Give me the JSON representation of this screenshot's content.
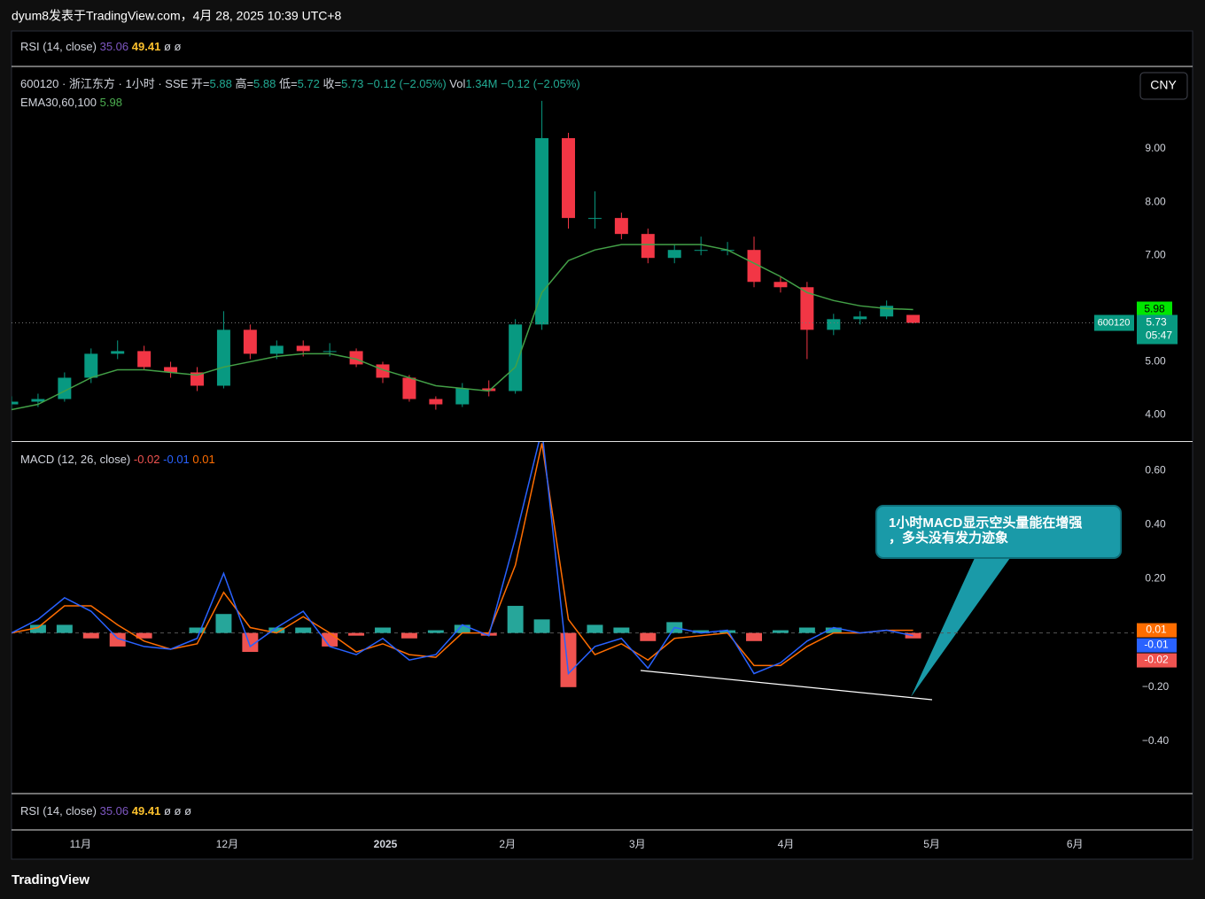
{
  "header": {
    "publisher": "dyum8发表于TradingView.com，4月 28, 2025 10:39 UTC+8",
    "currency_button": "CNY",
    "brand": "TradingView"
  },
  "rsi_pane": {
    "title": "RSI (14, close)",
    "value1": 35.06,
    "value2": 49.41,
    "extra": [
      "ø",
      "ø",
      "ø"
    ]
  },
  "annotation": [
    "1小时MACD显示空头量能在增强",
    "，多头没有发力迹象"
  ],
  "chart_data": [
    {
      "type": "candlestick",
      "symbol": "600120 · 浙江东方 · 1小时 · SSE",
      "ticker": "600120",
      "countdown": "05:47",
      "open_label": "开=",
      "high_label": "高=",
      "low_label": "低=",
      "close_label": "收=",
      "change": "−0.12 (−2.05%)",
      "vol_label": "Vol",
      "volume": "1.34M",
      "x": [
        0,
        3,
        6,
        9,
        12,
        15,
        18,
        21,
        24,
        27,
        30,
        33,
        36,
        39,
        42,
        45,
        48,
        51,
        54,
        57,
        60,
        63,
        66,
        69,
        72,
        75,
        78,
        81,
        84,
        87,
        90,
        93,
        96,
        99,
        102
      ],
      "open": [
        4.2,
        4.25,
        4.3,
        4.7,
        5.15,
        5.2,
        4.9,
        4.8,
        4.55,
        5.6,
        5.15,
        5.3,
        5.2,
        5.2,
        4.95,
        4.7,
        4.3,
        4.2,
        4.5,
        4.45,
        5.7,
        9.2,
        7.7,
        7.7,
        7.4,
        6.95,
        7.1,
        7.1,
        7.1,
        6.5,
        6.4,
        5.6,
        5.8,
        5.85,
        5.88
      ],
      "high": [
        4.35,
        4.4,
        4.8,
        5.25,
        5.4,
        5.3,
        5.0,
        4.9,
        5.95,
        5.7,
        5.4,
        5.4,
        5.35,
        5.25,
        5.0,
        4.75,
        4.35,
        4.6,
        4.65,
        5.8,
        9.9,
        9.3,
        8.2,
        7.8,
        7.5,
        7.2,
        7.35,
        7.25,
        7.35,
        6.6,
        6.5,
        5.9,
        5.95,
        6.15,
        5.88
      ],
      "low": [
        4.1,
        4.15,
        4.25,
        4.6,
        5.05,
        4.85,
        4.7,
        4.45,
        4.5,
        5.05,
        5.05,
        5.1,
        5.1,
        4.9,
        4.6,
        4.25,
        4.1,
        4.15,
        4.35,
        4.4,
        5.6,
        7.5,
        7.5,
        7.3,
        6.85,
        6.85,
        7.0,
        7.0,
        6.4,
        6.3,
        5.05,
        5.5,
        5.7,
        5.8,
        5.72
      ],
      "close": [
        4.25,
        4.3,
        4.7,
        5.15,
        5.2,
        4.9,
        4.8,
        4.55,
        5.6,
        5.15,
        5.3,
        5.2,
        5.2,
        4.95,
        4.7,
        4.3,
        4.2,
        4.5,
        4.45,
        5.7,
        9.2,
        7.7,
        7.7,
        7.4,
        6.95,
        7.1,
        7.1,
        7.1,
        6.5,
        6.4,
        5.6,
        5.8,
        5.85,
        6.05,
        5.73
      ],
      "up_color": "#089981",
      "down_color": "#f23645",
      "series": [
        {
          "name": "EMA30,60,100",
          "color": "#43a047",
          "values": [
            4.1,
            4.2,
            4.45,
            4.7,
            4.85,
            4.85,
            4.8,
            4.75,
            4.9,
            5.0,
            5.1,
            5.15,
            5.15,
            5.05,
            4.85,
            4.7,
            4.55,
            4.5,
            4.45,
            4.9,
            6.3,
            6.9,
            7.1,
            7.2,
            7.2,
            7.2,
            7.2,
            7.1,
            6.85,
            6.6,
            6.3,
            6.15,
            6.05,
            6.0,
            5.98
          ]
        }
      ],
      "ylim": [
        3.51,
        10.53
      ],
      "yticks": [
        {
          "value": 4,
          "label": "4.00"
        },
        {
          "value": 5,
          "label": "5.00"
        },
        {
          "value": 7,
          "label": "7.00"
        },
        {
          "value": 8,
          "label": "8.00"
        },
        {
          "value": 9,
          "label": "9.00"
        }
      ],
      "xlim": [
        0,
        127
      ],
      "xticks": [
        {
          "value": 7.8,
          "label": "11月"
        },
        {
          "value": 24.4,
          "label": "12月"
        },
        {
          "value": 42.3,
          "label": "2025"
        },
        {
          "value": 56.1,
          "label": "2月"
        },
        {
          "value": 70.8,
          "label": "3月"
        },
        {
          "value": 87.6,
          "label": "4月"
        },
        {
          "value": 104.1,
          "label": "5月"
        },
        {
          "value": 120.3,
          "label": "6月"
        }
      ],
      "grid": false
    },
    {
      "type": "macd",
      "title": "MACD (12, 26, close)",
      "x": [
        0,
        3,
        6,
        9,
        12,
        15,
        18,
        21,
        24,
        27,
        30,
        33,
        36,
        39,
        42,
        45,
        48,
        51,
        54,
        57,
        60,
        63,
        66,
        69,
        72,
        75,
        78,
        81,
        84,
        87,
        90,
        93,
        96,
        99,
        102
      ],
      "macd": {
        "color": "#2962ff",
        "values": [
          0.0,
          0.05,
          0.13,
          0.08,
          -0.02,
          -0.05,
          -0.06,
          -0.02,
          0.22,
          -0.05,
          0.02,
          0.08,
          -0.05,
          -0.08,
          -0.02,
          -0.1,
          -0.08,
          0.03,
          -0.01,
          0.35,
          0.75,
          -0.15,
          -0.05,
          -0.02,
          -0.13,
          0.02,
          0.0,
          0.01,
          -0.15,
          -0.11,
          -0.03,
          0.02,
          0.0,
          0.01,
          -0.01
        ]
      },
      "signal": {
        "color": "#ff6d00",
        "values": [
          0.0,
          0.02,
          0.1,
          0.1,
          0.03,
          -0.03,
          -0.06,
          -0.04,
          0.15,
          0.02,
          0.0,
          0.06,
          0.0,
          -0.07,
          -0.04,
          -0.08,
          -0.09,
          0.0,
          0.0,
          0.25,
          0.7,
          0.05,
          -0.08,
          -0.04,
          -0.1,
          -0.02,
          -0.01,
          0.0,
          -0.12,
          -0.12,
          -0.05,
          0.0,
          0.0,
          0.01,
          0.01
        ]
      },
      "histogram": {
        "up_color": "#26a69a",
        "down_color": "#ef5350",
        "values": [
          0,
          0.03,
          0.03,
          -0.02,
          -0.05,
          -0.02,
          0,
          0.02,
          0.07,
          -0.07,
          0.02,
          0.02,
          -0.05,
          -0.01,
          0.02,
          -0.02,
          0.01,
          0.03,
          -0.01,
          0.1,
          0.05,
          -0.2,
          0.03,
          0.02,
          -0.03,
          0.04,
          0.01,
          0.01,
          -0.03,
          0.01,
          0.02,
          0.02,
          0,
          0,
          -0.02
        ]
      },
      "ylim": [
        -0.593,
        0.705
      ],
      "yticks": [
        {
          "value": -0.4,
          "label": "−0.40"
        },
        {
          "value": -0.2,
          "label": "−0.20"
        },
        {
          "value": 0.2,
          "label": "0.20"
        },
        {
          "value": 0.4,
          "label": "0.40"
        },
        {
          "value": 0.6,
          "label": "0.60"
        }
      ]
    }
  ]
}
